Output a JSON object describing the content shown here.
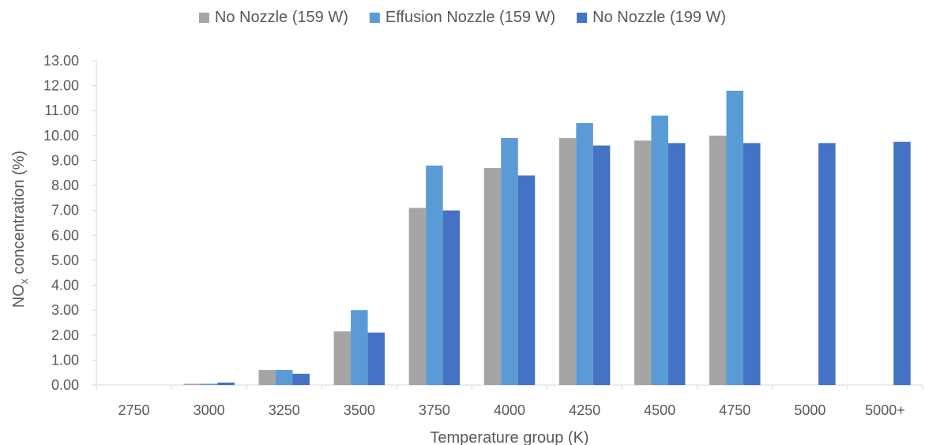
{
  "chart_data": {
    "type": "bar",
    "title": "",
    "xlabel": "Temperature group (K)",
    "ylabel": {
      "main": "NO",
      "sub": "x",
      "rest": " concentration (%)"
    },
    "categories": [
      "2750",
      "3000",
      "3250",
      "3500",
      "3750",
      "4000",
      "4250",
      "4500",
      "4750",
      "5000",
      "5000+"
    ],
    "ylim": [
      0,
      13
    ],
    "ytick_step": 1,
    "ytick_format_decimals": 2,
    "grid": false,
    "legend": "top",
    "series": [
      {
        "name": "No Nozzle (159 W)",
        "color": "#a5a5a5",
        "values": [
          0.0,
          0.05,
          0.6,
          2.15,
          7.1,
          8.7,
          9.9,
          9.8,
          10.0,
          0.0,
          0.0
        ]
      },
      {
        "name": "Effusion Nozzle (159 W)",
        "color": "#5b9bd5",
        "values": [
          0.0,
          0.05,
          0.6,
          3.0,
          8.8,
          9.9,
          10.5,
          10.8,
          11.8,
          0.0,
          0.0
        ]
      },
      {
        "name": "No Nozzle (199 W)",
        "color": "#4472c4",
        "values": [
          0.0,
          0.1,
          0.45,
          2.1,
          7.0,
          8.4,
          9.6,
          9.7,
          9.7,
          9.7,
          9.75
        ]
      }
    ]
  }
}
